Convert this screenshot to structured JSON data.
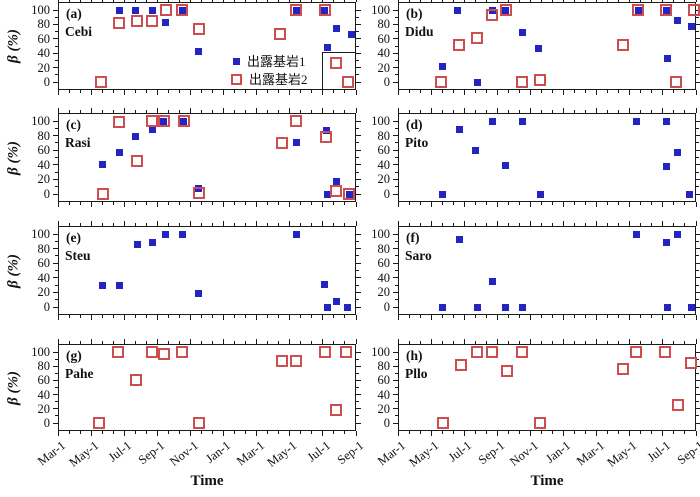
{
  "figure": {
    "ylabel": "β (%)",
    "xlabel": "Time",
    "colors": {
      "series1_blue": "#2424c4",
      "series2_red": "#cc4e4e",
      "axis": "#1a1a1a",
      "background": "#ffffff"
    },
    "legend": {
      "items": [
        {
          "label": "出露基岩1",
          "marker": "blue-filled-square"
        },
        {
          "label": "出露基岩2",
          "marker": "red-open-square"
        }
      ],
      "location": "subplot-a-bottom-right"
    }
  },
  "chart_data": {
    "type": "scatter",
    "layout": "4 rows x 2 columns of subplots",
    "title": "",
    "xlabel": "Time",
    "ylabel": "β (%)",
    "x_axis": {
      "unit": "months since first Mar-1",
      "range": [
        0,
        18
      ],
      "major_tick_positions": [
        0,
        2,
        4,
        6,
        8,
        10,
        12,
        14,
        16,
        18
      ],
      "tick_labels": [
        "Mar-1",
        "May-1",
        "Jul-1",
        "Sep-1",
        "Nov-1",
        "Jan-1",
        "Mar-1",
        "May-1",
        "Jul-1",
        "Sep-1"
      ],
      "tick_label_rotation_deg": -38,
      "minor_tick_step_months": 0.6667
    },
    "y_axis": {
      "range": [
        0,
        100
      ],
      "major_ticks": [
        0,
        20,
        40,
        60,
        80,
        100
      ],
      "minor_tick_step": 10
    },
    "series_names": {
      "series1": "出露基岩1",
      "series2": "出露基岩2"
    },
    "grid": false,
    "subplots": [
      {
        "tag": "(a)",
        "site": "Cebi",
        "series1": [
          [
            3.7,
            100
          ],
          [
            4.7,
            100
          ],
          [
            5.7,
            100
          ],
          [
            6.5,
            82
          ],
          [
            7.5,
            100
          ],
          [
            8.5,
            43
          ],
          [
            14.4,
            100
          ],
          [
            16.1,
            100
          ],
          [
            16.3,
            48
          ],
          [
            16.8,
            75
          ],
          [
            17.7,
            66
          ]
        ],
        "series2": [
          [
            2.6,
            0
          ],
          [
            3.7,
            82
          ],
          [
            4.8,
            85
          ],
          [
            5.7,
            85
          ],
          [
            6.5,
            100
          ],
          [
            7.5,
            100
          ],
          [
            8.5,
            73
          ],
          [
            13.4,
            66
          ],
          [
            14.4,
            100
          ],
          [
            16.1,
            100
          ],
          [
            16.8,
            27
          ],
          [
            17.5,
            0
          ]
        ]
      },
      {
        "tag": "(b)",
        "site": "Didu",
        "series1": [
          [
            2.7,
            21
          ],
          [
            3.6,
            100
          ],
          [
            4.8,
            0
          ],
          [
            5.7,
            100
          ],
          [
            6.5,
            100
          ],
          [
            7.5,
            69
          ],
          [
            8.5,
            46
          ],
          [
            14.5,
            100
          ],
          [
            16.2,
            100
          ],
          [
            16.3,
            32
          ],
          [
            16.9,
            86
          ],
          [
            17.7,
            77
          ]
        ],
        "series2": [
          [
            2.6,
            0
          ],
          [
            3.7,
            52
          ],
          [
            4.8,
            61
          ],
          [
            5.7,
            93
          ],
          [
            6.5,
            100
          ],
          [
            7.5,
            0
          ],
          [
            8.6,
            3
          ],
          [
            13.6,
            51
          ],
          [
            14.5,
            100
          ],
          [
            16.2,
            100
          ],
          [
            16.8,
            0
          ],
          [
            17.9,
            100
          ]
        ]
      },
      {
        "tag": "(c)",
        "site": "Rasi",
        "series1": [
          [
            2.7,
            40
          ],
          [
            3.7,
            57
          ],
          [
            4.7,
            79
          ],
          [
            5.7,
            88
          ],
          [
            6.4,
            100
          ],
          [
            7.6,
            100
          ],
          [
            8.5,
            8
          ],
          [
            14.4,
            70
          ],
          [
            16.2,
            87
          ],
          [
            16.3,
            0
          ],
          [
            16.8,
            17
          ],
          [
            17.6,
            0
          ]
        ],
        "series2": [
          [
            2.7,
            0
          ],
          [
            3.7,
            98
          ],
          [
            4.8,
            45
          ],
          [
            5.7,
            100
          ],
          [
            6.4,
            100
          ],
          [
            7.6,
            100
          ],
          [
            8.5,
            2
          ],
          [
            13.5,
            70
          ],
          [
            14.4,
            100
          ],
          [
            16.2,
            78
          ],
          [
            16.8,
            4
          ],
          [
            17.6,
            0
          ]
        ]
      },
      {
        "tag": "(d)",
        "site": "Pito",
        "series1": [
          [
            2.7,
            0
          ],
          [
            3.7,
            89
          ],
          [
            4.7,
            60
          ],
          [
            5.7,
            100
          ],
          [
            6.5,
            39
          ],
          [
            7.5,
            100
          ],
          [
            8.6,
            0
          ],
          [
            14.4,
            100
          ],
          [
            16.2,
            100
          ],
          [
            16.2,
            37
          ],
          [
            16.9,
            57
          ],
          [
            17.6,
            0
          ]
        ],
        "series2": []
      },
      {
        "tag": "(e)",
        "site": "Steu",
        "series1": [
          [
            2.7,
            30
          ],
          [
            3.7,
            30
          ],
          [
            4.8,
            85
          ],
          [
            5.7,
            88
          ],
          [
            6.5,
            100
          ],
          [
            7.5,
            100
          ],
          [
            8.5,
            18
          ],
          [
            14.4,
            99
          ],
          [
            16.1,
            31
          ],
          [
            16.3,
            0
          ],
          [
            16.8,
            7
          ],
          [
            17.5,
            0
          ]
        ],
        "series2": []
      },
      {
        "tag": "(f)",
        "site": "Saro",
        "series1": [
          [
            2.7,
            0
          ],
          [
            3.7,
            93
          ],
          [
            4.8,
            0
          ],
          [
            5.7,
            35
          ],
          [
            6.5,
            0
          ],
          [
            7.5,
            0
          ],
          [
            14.4,
            100
          ],
          [
            16.2,
            89
          ],
          [
            16.3,
            0
          ],
          [
            16.9,
            100
          ],
          [
            17.7,
            0
          ]
        ],
        "series2": []
      },
      {
        "tag": "(g)",
        "site": "Pahe",
        "series1": [],
        "series2": [
          [
            2.5,
            0
          ],
          [
            3.6,
            100
          ],
          [
            4.7,
            60
          ],
          [
            5.7,
            100
          ],
          [
            6.4,
            97
          ],
          [
            7.5,
            100
          ],
          [
            8.5,
            0
          ],
          [
            13.5,
            87
          ],
          [
            14.4,
            87
          ],
          [
            16.1,
            100
          ],
          [
            16.8,
            18
          ],
          [
            17.4,
            100
          ]
        ]
      },
      {
        "tag": "(h)",
        "site": "Pllo",
        "series1": [],
        "series2": [
          [
            2.7,
            0
          ],
          [
            3.8,
            82
          ],
          [
            4.8,
            100
          ],
          [
            5.7,
            100
          ],
          [
            6.6,
            73
          ],
          [
            7.5,
            100
          ],
          [
            8.6,
            0
          ],
          [
            13.6,
            76
          ],
          [
            14.4,
            100
          ],
          [
            16.1,
            100
          ],
          [
            16.9,
            26
          ],
          [
            17.7,
            85
          ]
        ]
      }
    ]
  }
}
